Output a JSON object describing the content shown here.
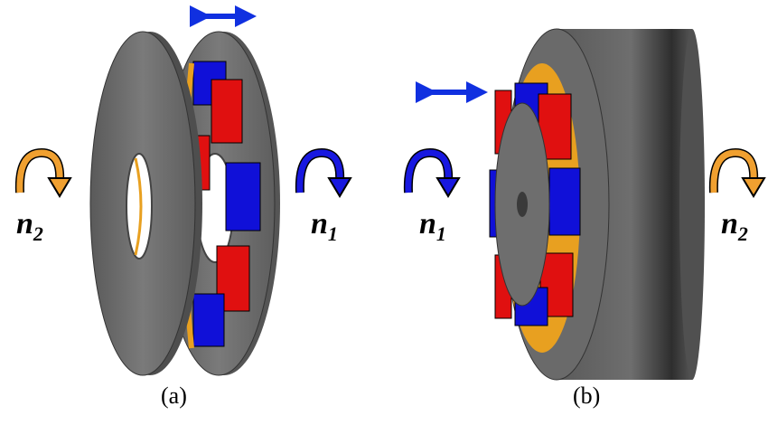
{
  "figure": {
    "panel_a": {
      "caption": "(a)",
      "left_label": {
        "symbol": "n",
        "subscript": "2"
      },
      "right_label": {
        "symbol": "n",
        "subscript": "1"
      }
    },
    "panel_b": {
      "caption": "(b)",
      "left_label": {
        "symbol": "n",
        "subscript": "1"
      },
      "right_label": {
        "symbol": "n",
        "subscript": "2"
      }
    },
    "colors": {
      "disc": "#6b6b6b",
      "disc_dark": "#4a4a4a",
      "magnet_red": "#e01010",
      "magnet_blue": "#1010d8",
      "shield_orange": "#e8a020",
      "rotation_arrow_orange": "#f0a030",
      "rotation_arrow_blue": "#1818e0",
      "motion_arrow_blue": "#1030e0"
    }
  }
}
